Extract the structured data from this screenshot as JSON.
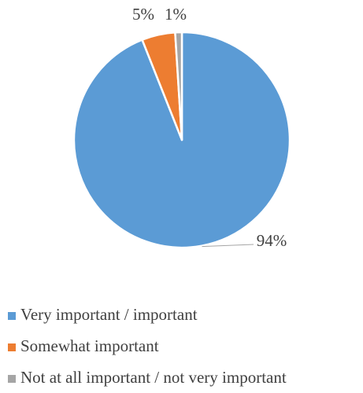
{
  "chart_data": {
    "type": "pie",
    "categories": [
      "Very important / important",
      "Somewhat important",
      "Not at all important / not very important"
    ],
    "values": [
      94,
      5,
      1
    ],
    "data_labels": [
      "94%",
      "5%",
      "1%"
    ],
    "colors": [
      "#5B9BD5",
      "#ED7D31",
      "#A5A5A5"
    ],
    "legend_position": "bottom",
    "start_angle": "top",
    "direction": "clockwise",
    "title": ""
  }
}
